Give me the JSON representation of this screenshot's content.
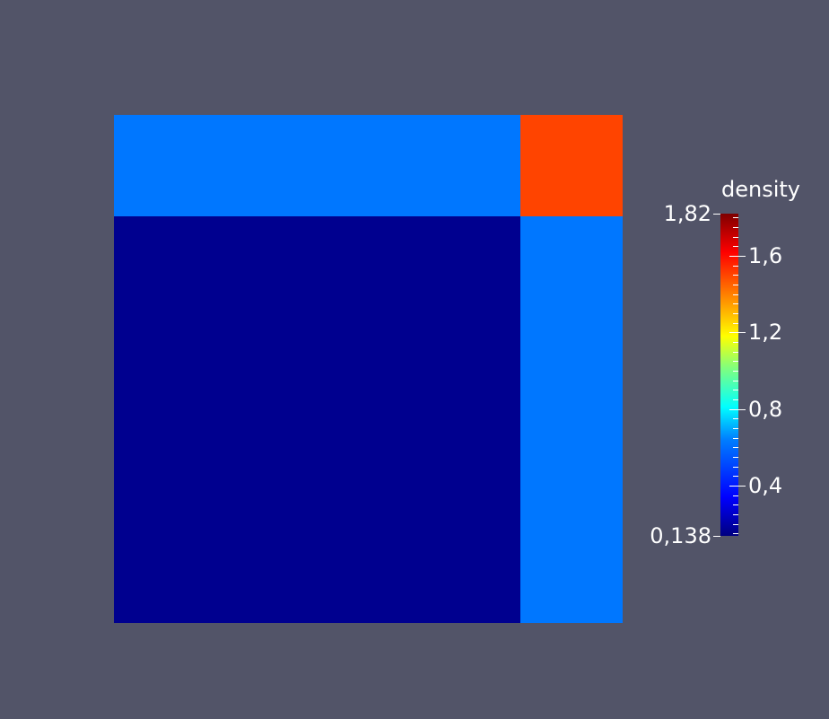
{
  "scene": {
    "quadrants": {
      "top_left": {
        "color": "#0077ff"
      },
      "top_right": {
        "color": "#ff4400"
      },
      "bottom_left": {
        "color": "#00008f"
      },
      "bottom_right": {
        "color": "#0077ff"
      }
    },
    "background_color": "#525468"
  },
  "colorbar": {
    "title": "density",
    "min_label": "0,138",
    "max_label": "1,82",
    "tick_labels": [
      "0,4",
      "0,8",
      "1,2",
      "1,6"
    ],
    "range": [
      0.138,
      1.82
    ],
    "tick_values": [
      0.4,
      0.8,
      1.2,
      1.6
    ],
    "colormap": "jet"
  }
}
